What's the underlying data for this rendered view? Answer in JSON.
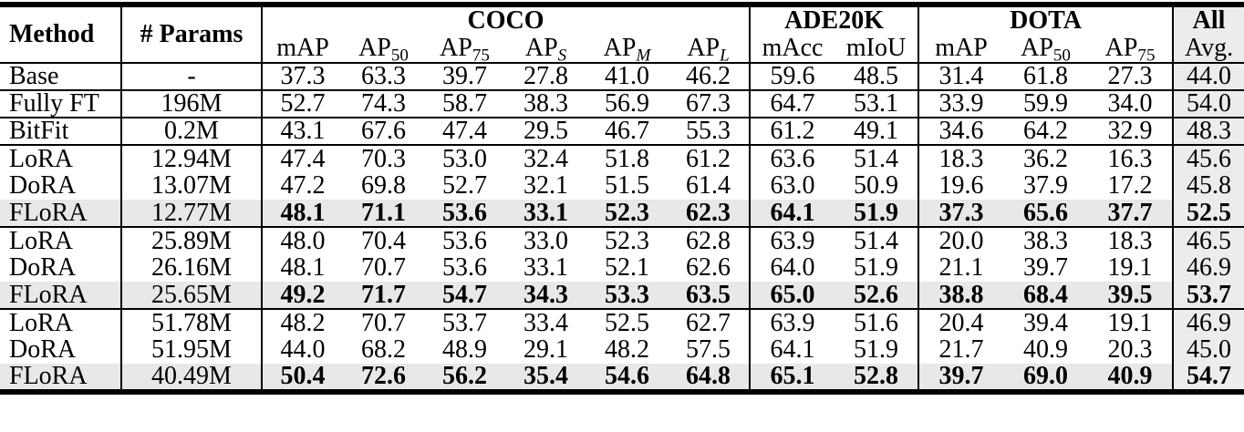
{
  "table": {
    "header": {
      "method": "Method",
      "params": "# Params",
      "groups": [
        {
          "label": "COCO",
          "span": 6
        },
        {
          "label": "ADE20K",
          "span": 2
        },
        {
          "label": "DOTA",
          "span": 3
        },
        {
          "label": "All",
          "span": 1
        }
      ]
    },
    "columns": [
      {
        "base": "mAP",
        "sub": ""
      },
      {
        "base": "AP",
        "sub": "50"
      },
      {
        "base": "AP",
        "sub": "75"
      },
      {
        "base": "AP",
        "sub": "S",
        "italic_sub": true
      },
      {
        "base": "AP",
        "sub": "M",
        "italic_sub": true
      },
      {
        "base": "AP",
        "sub": "L",
        "italic_sub": true
      },
      {
        "base": "mAcc",
        "sub": ""
      },
      {
        "base": "mIoU",
        "sub": ""
      },
      {
        "base": "mAP",
        "sub": ""
      },
      {
        "base": "AP",
        "sub": "50"
      },
      {
        "base": "AP",
        "sub": "75"
      },
      {
        "base": "Avg.",
        "sub": ""
      }
    ],
    "rows": [
      {
        "method": "Base",
        "params": "-",
        "values": [
          "37.3",
          "63.3",
          "39.7",
          "27.8",
          "41.0",
          "46.2",
          "59.6",
          "48.5",
          "31.4",
          "61.8",
          "27.3",
          "44.0"
        ],
        "bold": false,
        "highlight": false,
        "separator_above": false
      },
      {
        "method": "Fully FT",
        "params": "196M",
        "values": [
          "52.7",
          "74.3",
          "58.7",
          "38.3",
          "56.9",
          "67.3",
          "64.7",
          "53.1",
          "33.9",
          "59.9",
          "34.0",
          "54.0"
        ],
        "bold": false,
        "highlight": false,
        "separator_above": true
      },
      {
        "method": "BitFit",
        "params": "0.2M",
        "values": [
          "43.1",
          "67.6",
          "47.4",
          "29.5",
          "46.7",
          "55.3",
          "61.2",
          "49.1",
          "34.6",
          "64.2",
          "32.9",
          "48.3"
        ],
        "bold": false,
        "highlight": false,
        "separator_above": true
      },
      {
        "method": "LoRA",
        "params": "12.94M",
        "values": [
          "47.4",
          "70.3",
          "53.0",
          "32.4",
          "51.8",
          "61.2",
          "63.6",
          "51.4",
          "18.3",
          "36.2",
          "16.3",
          "45.6"
        ],
        "bold": false,
        "highlight": false,
        "separator_above": true
      },
      {
        "method": "DoRA",
        "params": "13.07M",
        "values": [
          "47.2",
          "69.8",
          "52.7",
          "32.1",
          "51.5",
          "61.4",
          "63.0",
          "50.9",
          "19.6",
          "37.9",
          "17.2",
          "45.8"
        ],
        "bold": false,
        "highlight": false,
        "separator_above": false
      },
      {
        "method": "FLoRA",
        "params": "12.77M",
        "values": [
          "48.1",
          "71.1",
          "53.6",
          "33.1",
          "52.3",
          "62.3",
          "64.1",
          "51.9",
          "37.3",
          "65.6",
          "37.7",
          "52.5"
        ],
        "bold": true,
        "highlight": true,
        "separator_above": false
      },
      {
        "method": "LoRA",
        "params": "25.89M",
        "values": [
          "48.0",
          "70.4",
          "53.6",
          "33.0",
          "52.3",
          "62.8",
          "63.9",
          "51.4",
          "20.0",
          "38.3",
          "18.3",
          "46.5"
        ],
        "bold": false,
        "highlight": false,
        "separator_above": true
      },
      {
        "method": "DoRA",
        "params": "26.16M",
        "values": [
          "48.1",
          "70.7",
          "53.6",
          "33.1",
          "52.1",
          "62.6",
          "64.0",
          "51.9",
          "21.1",
          "39.7",
          "19.1",
          "46.9"
        ],
        "bold": false,
        "highlight": false,
        "separator_above": false
      },
      {
        "method": "FLoRA",
        "params": "25.65M",
        "values": [
          "49.2",
          "71.7",
          "54.7",
          "34.3",
          "53.3",
          "63.5",
          "65.0",
          "52.6",
          "38.8",
          "68.4",
          "39.5",
          "53.7"
        ],
        "bold": true,
        "highlight": true,
        "separator_above": false
      },
      {
        "method": "LoRA",
        "params": "51.78M",
        "values": [
          "48.2",
          "70.7",
          "53.7",
          "33.4",
          "52.5",
          "62.7",
          "63.9",
          "51.6",
          "20.4",
          "39.4",
          "19.1",
          "46.9"
        ],
        "bold": false,
        "highlight": false,
        "separator_above": true
      },
      {
        "method": "DoRA",
        "params": "51.95M",
        "values": [
          "44.0",
          "68.2",
          "48.9",
          "29.1",
          "48.2",
          "57.5",
          "64.1",
          "51.9",
          "21.7",
          "40.9",
          "20.3",
          "45.0"
        ],
        "bold": false,
        "highlight": false,
        "separator_above": false
      },
      {
        "method": "FLoRA",
        "params": "40.49M",
        "values": [
          "50.4",
          "72.6",
          "56.2",
          "35.4",
          "54.6",
          "64.8",
          "65.1",
          "52.8",
          "39.7",
          "69.0",
          "40.9",
          "54.7"
        ],
        "bold": true,
        "highlight": true,
        "separator_above": false
      }
    ]
  },
  "colors": {
    "row_highlight": "#e8e8e8",
    "all_column_bg": "#ececec",
    "rule": "#000000"
  }
}
